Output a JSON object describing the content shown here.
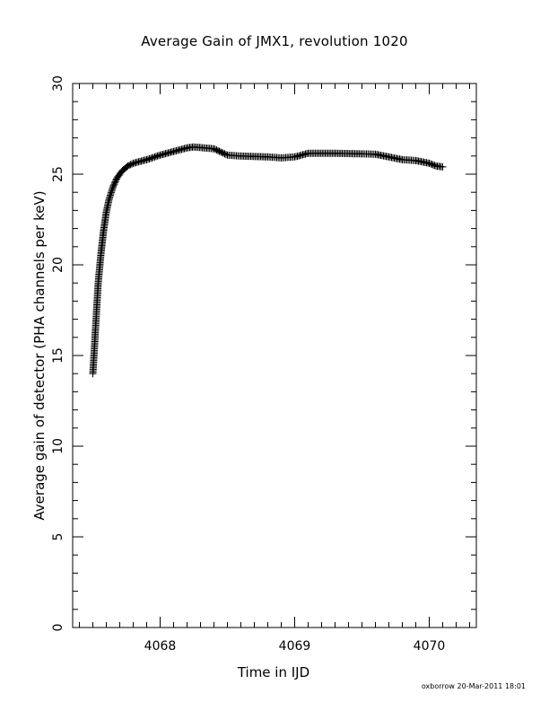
{
  "footer": "oxborrow 20-Mar-2011 18:01",
  "chart_data": {
    "type": "scatter",
    "marker": "plus",
    "color": "#000000",
    "title": "Average Gain of JMX1, revolution 1020",
    "xlabel": "Time in IJD",
    "ylabel": "Average gain of detector (PHA channels per keV)",
    "xlim": [
      4067.35,
      4070.35
    ],
    "ylim": [
      0,
      30
    ],
    "xticks": [
      4068,
      4069,
      4070
    ],
    "xtick_labels": [
      "4068",
      "4069",
      "4070"
    ],
    "yticks": [
      0,
      5,
      10,
      15,
      20,
      25,
      30
    ],
    "ytick_labels": [
      "0",
      "5",
      "10",
      "15",
      "20",
      "25",
      "30"
    ],
    "x_minor_step": 0.1,
    "y_minor_step": 1,
    "grid": false,
    "legend": "none",
    "series": [
      {
        "x": [
          4067.5,
          4067.51,
          4067.52,
          4067.53,
          4067.54,
          4067.56,
          4067.58,
          4067.6,
          4067.62,
          4067.65,
          4067.68,
          4067.72,
          4067.76,
          4067.8,
          4067.9,
          4068.0,
          4068.1,
          4068.2,
          4068.25,
          4068.4,
          4068.5,
          4068.6,
          4068.8,
          4068.9,
          4069.0,
          4069.1,
          4069.3,
          4069.5,
          4069.6,
          4069.7,
          4069.8,
          4069.9,
          4070.0,
          4070.05,
          4070.1
        ],
        "y": [
          14.0,
          15.2,
          16.5,
          17.8,
          19.0,
          20.6,
          21.9,
          22.9,
          23.6,
          24.3,
          24.8,
          25.2,
          25.45,
          25.6,
          25.8,
          26.05,
          26.25,
          26.45,
          26.5,
          26.4,
          26.05,
          26.0,
          25.95,
          25.9,
          25.95,
          26.15,
          26.15,
          26.12,
          26.1,
          25.95,
          25.8,
          25.75,
          25.6,
          25.45,
          25.4
        ]
      }
    ]
  }
}
